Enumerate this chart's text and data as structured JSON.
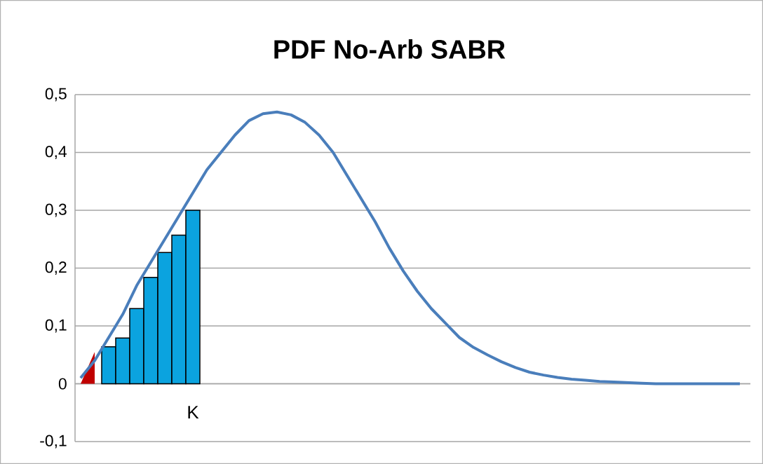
{
  "chart_data": {
    "type": "line",
    "title": "PDF No-Arb SABR",
    "categories": [
      null,
      null,
      null,
      null,
      null,
      null,
      null,
      null,
      null,
      null,
      null,
      null,
      null,
      null,
      null,
      null,
      null,
      null,
      null,
      null,
      null,
      null,
      null,
      null,
      null,
      null,
      null,
      null,
      null,
      null,
      null,
      null,
      null,
      null,
      null,
      null,
      null,
      null,
      null,
      null,
      null,
      null,
      null,
      null,
      null,
      null,
      null,
      null
    ],
    "series": [
      {
        "type": "area",
        "color": "#c00000",
        "values": [
          0,
          0.055,
          null,
          null,
          null,
          null,
          null,
          null,
          null,
          null,
          null,
          null,
          null,
          null,
          null,
          null,
          null,
          null,
          null,
          null,
          null,
          null,
          null,
          null,
          null,
          null,
          null,
          null,
          null,
          null,
          null,
          null,
          null,
          null,
          null,
          null,
          null,
          null,
          null,
          null,
          null,
          null,
          null,
          null,
          null,
          null,
          null,
          null
        ]
      },
      {
        "type": "bar",
        "color": "#0ba3df",
        "values": [
          null,
          null,
          0.064,
          0.079,
          0.13,
          0.184,
          0.227,
          0.257,
          0.3,
          null,
          null,
          null,
          null,
          null,
          null,
          null,
          null,
          null,
          null,
          null,
          null,
          null,
          null,
          null,
          null,
          null,
          null,
          null,
          null,
          null,
          null,
          null,
          null,
          null,
          null,
          null,
          null,
          null,
          null,
          null,
          null,
          null,
          null,
          null,
          null,
          null,
          null,
          null
        ]
      },
      {
        "color": "#4a7ebb",
        "values": [
          0.01,
          0.04,
          0.08,
          0.12,
          0.17,
          0.21,
          0.25,
          0.29,
          0.33,
          0.37,
          0.4,
          0.43,
          0.455,
          0.467,
          0.47,
          0.465,
          0.452,
          0.43,
          0.4,
          0.36,
          0.32,
          0.28,
          0.235,
          0.195,
          0.16,
          0.13,
          0.105,
          0.08,
          0.063,
          0.05,
          0.038,
          0.028,
          0.02,
          0.015,
          0.011,
          0.008,
          0.006,
          0.004,
          0.003,
          0.002,
          0.001,
          0,
          0,
          0,
          0,
          0,
          0,
          0
        ]
      }
    ],
    "ylim": [
      -0.1,
      0.5
    ],
    "yticks": [
      {
        "value": -0.1,
        "label": "-0,1"
      },
      {
        "value": 0,
        "label": "0"
      },
      {
        "value": 0.1,
        "label": "0,1"
      },
      {
        "value": 0.2,
        "label": "0,2"
      },
      {
        "value": 0.3,
        "label": "0,3"
      },
      {
        "value": 0.4,
        "label": "0,4"
      },
      {
        "value": 0.5,
        "label": "0,5"
      }
    ],
    "grid": "y",
    "annotations": [
      "K"
    ]
  }
}
